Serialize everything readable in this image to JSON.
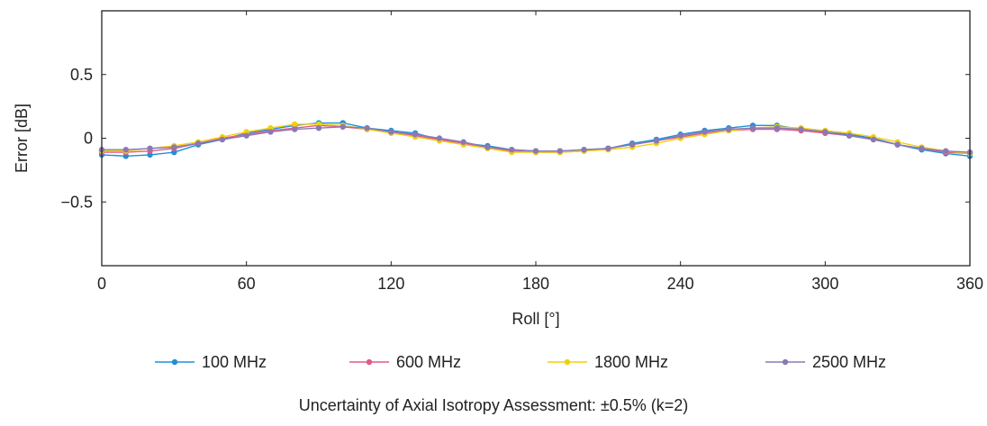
{
  "chart_data": {
    "type": "line",
    "xlabel": "Roll [°]",
    "ylabel": "Error [dB]",
    "xlim": [
      0,
      360
    ],
    "ylim": [
      -1,
      1
    ],
    "xticks": [
      0,
      60,
      120,
      180,
      240,
      300,
      360
    ],
    "xtick_labels": [
      "0",
      "60",
      "120",
      "180",
      "240",
      "300",
      "360"
    ],
    "yticks": [
      -0.5,
      0,
      0.5
    ],
    "ytick_labels": [
      "−0.5",
      "0",
      "0.5"
    ],
    "grid": false,
    "legend_position": "bottom",
    "x": [
      0,
      10,
      20,
      30,
      40,
      50,
      60,
      70,
      80,
      90,
      100,
      110,
      120,
      130,
      140,
      150,
      160,
      170,
      180,
      190,
      200,
      210,
      220,
      230,
      240,
      250,
      260,
      270,
      280,
      290,
      300,
      310,
      320,
      330,
      340,
      350,
      360
    ],
    "series": [
      {
        "name": "100 MHz",
        "color": "#1e90d6",
        "values": [
          -0.13,
          -0.14,
          -0.13,
          -0.11,
          -0.05,
          -0.01,
          0.04,
          0.07,
          0.1,
          0.12,
          0.12,
          0.08,
          0.06,
          0.04,
          -0.01,
          -0.04,
          -0.06,
          -0.09,
          -0.1,
          -0.1,
          -0.09,
          -0.08,
          -0.04,
          -0.01,
          0.03,
          0.06,
          0.08,
          0.1,
          0.1,
          0.07,
          0.05,
          0.03,
          0.0,
          -0.05,
          -0.09,
          -0.12,
          -0.14
        ]
      },
      {
        "name": "600 MHz",
        "color": "#e05c84",
        "values": [
          -0.11,
          -0.11,
          -0.1,
          -0.08,
          -0.04,
          0.0,
          0.03,
          0.06,
          0.08,
          0.1,
          0.09,
          0.07,
          0.05,
          0.02,
          -0.01,
          -0.04,
          -0.07,
          -0.1,
          -0.11,
          -0.11,
          -0.1,
          -0.08,
          -0.05,
          -0.02,
          0.01,
          0.04,
          0.06,
          0.07,
          0.07,
          0.06,
          0.04,
          0.02,
          -0.01,
          -0.05,
          -0.08,
          -0.11,
          -0.12
        ]
      },
      {
        "name": "1800 MHz",
        "color": "#f2cf10",
        "values": [
          -0.1,
          -0.1,
          -0.08,
          -0.06,
          -0.03,
          0.01,
          0.05,
          0.08,
          0.11,
          0.11,
          0.1,
          0.07,
          0.04,
          0.01,
          -0.02,
          -0.05,
          -0.08,
          -0.11,
          -0.11,
          -0.11,
          -0.1,
          -0.09,
          -0.07,
          -0.04,
          0.0,
          0.03,
          0.06,
          0.08,
          0.09,
          0.08,
          0.06,
          0.04,
          0.01,
          -0.03,
          -0.07,
          -0.1,
          -0.12
        ]
      },
      {
        "name": "2500 MHz",
        "color": "#8a79b7",
        "values": [
          -0.09,
          -0.09,
          -0.08,
          -0.07,
          -0.04,
          -0.01,
          0.02,
          0.05,
          0.07,
          0.08,
          0.09,
          0.08,
          0.05,
          0.03,
          0.0,
          -0.03,
          -0.07,
          -0.09,
          -0.1,
          -0.1,
          -0.09,
          -0.08,
          -0.05,
          -0.02,
          0.02,
          0.05,
          0.07,
          0.08,
          0.08,
          0.07,
          0.05,
          0.02,
          -0.01,
          -0.05,
          -0.08,
          -0.1,
          -0.11
        ]
      }
    ]
  },
  "footer": {
    "note": "Uncertainty of Axial Isotropy Assessment: ±0.5% (k=2)"
  }
}
